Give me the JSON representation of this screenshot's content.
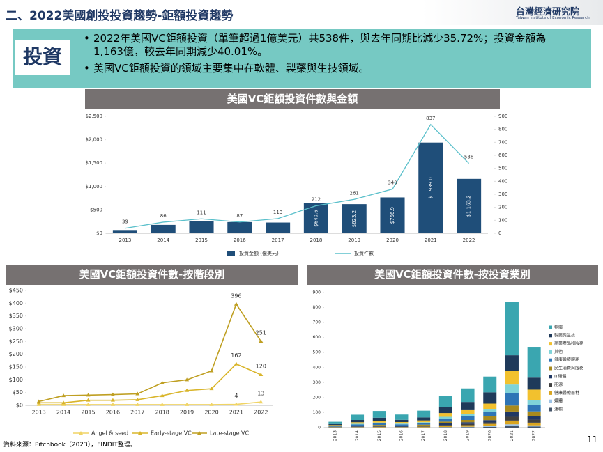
{
  "header": {
    "title": "二、2022美國創投投資趨勢-鉅額投資趨勢",
    "logo": "台灣經濟研究院",
    "logo_sub": "Taiwan Institute of Economic Research"
  },
  "summary": {
    "label": "投資",
    "bullets": [
      "2022年美國VC鉅額投資（單筆超過1億美元）共538件，與去年同期比減少35.72%；投資金額為1,163億，較去年同期減少40.01%。",
      "美國VC鉅額投資的領域主要集中在軟體、製藥與生技領域。"
    ]
  },
  "chart_data": [
    {
      "type": "combo",
      "title": "美國VC鉅額投資件數與金額",
      "categories": [
        "2013",
        "2014",
        "2015",
        "2016",
        "2017",
        "2018",
        "2019",
        "2020",
        "2021",
        "2022"
      ],
      "series": [
        {
          "name": "投資金額 (億美元)",
          "color": "#1f4e79",
          "values": [
            70,
            180,
            260,
            240,
            230,
            640.6,
            623.2,
            766.9,
            1939.0,
            1163.2
          ],
          "value_labels": [
            null,
            null,
            null,
            null,
            null,
            "$640.6",
            "$623.2",
            "$766.9",
            "$1,939.0",
            "$1,163.2"
          ]
        },
        {
          "name": "投資件數",
          "color": "#5bc0cb",
          "axis": "y2",
          "values": [
            39,
            86,
            111,
            87,
            113,
            212,
            261,
            340,
            837,
            538
          ]
        }
      ],
      "ylim": [
        0,
        2500
      ],
      "yticks": [
        {
          "value": 0,
          "label": "$0"
        },
        {
          "value": 500,
          "label": "$500"
        },
        {
          "value": 1000,
          "label": "$1,000"
        },
        {
          "value": 1500,
          "label": "$1,500"
        },
        {
          "value": 2000,
          "label": "$2,000"
        },
        {
          "value": 2500,
          "label": "$2,500"
        }
      ],
      "y2lim": [
        0,
        900
      ],
      "y2ticks": [
        0,
        100,
        200,
        300,
        400,
        500,
        600,
        700,
        800,
        900
      ],
      "grid": false
    },
    {
      "type": "line",
      "title": "美國VC鉅額投資件數-按階段別",
      "categories": [
        "2013",
        "2014",
        "2015",
        "2016",
        "2017",
        "2018",
        "2019",
        "2020",
        "2021",
        "2022"
      ],
      "series": [
        {
          "name": "Angel & seed",
          "color": "#f0d465",
          "values": [
            3,
            3,
            3,
            3,
            3,
            3,
            3,
            3,
            4,
            13
          ],
          "value_labels": [
            null,
            null,
            null,
            null,
            null,
            null,
            null,
            null,
            "4",
            "13"
          ]
        },
        {
          "name": "Early-stage VC",
          "color": "#d9b52b",
          "values": [
            10,
            10,
            20,
            20,
            22,
            38,
            58,
            65,
            162,
            120
          ],
          "value_labels": [
            null,
            null,
            null,
            null,
            null,
            null,
            null,
            null,
            "162",
            "120"
          ]
        },
        {
          "name": "Late-stage VC",
          "color": "#bf9f22",
          "values": [
            15,
            38,
            40,
            42,
            45,
            88,
            100,
            135,
            396,
            251
          ],
          "value_labels": [
            null,
            null,
            null,
            null,
            null,
            null,
            null,
            null,
            "396",
            "251"
          ]
        }
      ],
      "ylim": [
        0,
        450
      ],
      "yticks": [
        {
          "value": 0,
          "label": "$0"
        },
        {
          "value": 50,
          "label": "$50"
        },
        {
          "value": 100,
          "label": "$100"
        },
        {
          "value": 150,
          "label": "$150"
        },
        {
          "value": 200,
          "label": "$200"
        },
        {
          "value": 250,
          "label": "$250"
        },
        {
          "value": 300,
          "label": "$300"
        },
        {
          "value": 350,
          "label": "$350"
        },
        {
          "value": 400,
          "label": "$400"
        },
        {
          "value": 450,
          "label": "$450"
        }
      ],
      "grid": false
    },
    {
      "type": "stacked_bar",
      "title": "美國VC鉅額投資件數-按投資業別",
      "categories": [
        "2013",
        "2014",
        "2015",
        "2016",
        "2017",
        "2018",
        "2019",
        "2020",
        "2021",
        "2022"
      ],
      "series": [
        {
          "name": "軟體",
          "color": "#3aa6b0",
          "values": [
            15,
            35,
            45,
            35,
            45,
            75,
            90,
            105,
            355,
            205
          ]
        },
        {
          "name": "製藥與生技",
          "color": "#1f3a5a",
          "values": [
            7,
            15,
            20,
            15,
            20,
            40,
            50,
            75,
            105,
            80
          ]
        },
        {
          "name": "商業產品和服務",
          "color": "#f2c12e",
          "values": [
            5,
            10,
            12,
            10,
            12,
            25,
            30,
            35,
            90,
            70
          ]
        },
        {
          "name": "其他",
          "color": "#7fd3d8",
          "values": [
            2,
            5,
            6,
            5,
            6,
            12,
            15,
            20,
            55,
            30
          ]
        },
        {
          "name": "健康醫療服務",
          "color": "#2e75b6",
          "values": [
            4,
            8,
            10,
            8,
            10,
            20,
            25,
            30,
            85,
            45
          ]
        },
        {
          "name": "民生消費與服務",
          "color": "#a88a1e",
          "values": [
            2,
            4,
            5,
            4,
            6,
            12,
            15,
            25,
            40,
            30
          ]
        },
        {
          "name": "IT硬體",
          "color": "#203864",
          "values": [
            1,
            3,
            5,
            4,
            5,
            10,
            12,
            15,
            35,
            25
          ]
        },
        {
          "name": "能源",
          "color": "#404040",
          "values": [
            1,
            2,
            3,
            2,
            3,
            6,
            8,
            10,
            25,
            20
          ]
        },
        {
          "name": "健康醫療器材",
          "color": "#d9a520",
          "values": [
            1,
            2,
            3,
            2,
            4,
            8,
            10,
            15,
            25,
            18
          ]
        },
        {
          "name": "媒體",
          "color": "#9dc3e6",
          "values": [
            0.5,
            1,
            1,
            1,
            1,
            2,
            3,
            5,
            12,
            8
          ]
        },
        {
          "name": "運輸",
          "color": "#44546a",
          "values": [
            0.5,
            1,
            1,
            1,
            1,
            2,
            3,
            5,
            10,
            7
          ]
        }
      ],
      "ylim": [
        0,
        900
      ],
      "yticks": [
        0,
        100,
        200,
        300,
        400,
        500,
        600,
        700,
        800,
        900
      ],
      "grid": false
    }
  ],
  "footer": {
    "source": "資料來源：Pitchbook（2023），FINDIT整理。",
    "page": "11"
  }
}
